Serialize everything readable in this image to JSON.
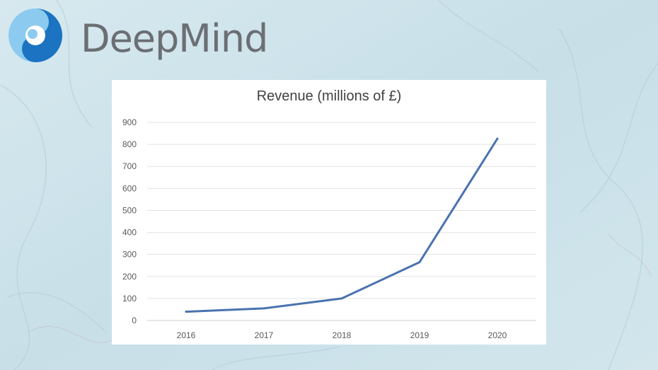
{
  "brand": {
    "name": "DeepMind",
    "colors": {
      "text": "#6b6f73",
      "logo_light": "#7cc6ee",
      "logo_dark": "#1a6fbf"
    }
  },
  "chart_data": {
    "type": "line",
    "title": "Revenue (millions of £)",
    "xlabel": "",
    "ylabel": "",
    "categories": [
      "2016",
      "2017",
      "2018",
      "2019",
      "2020"
    ],
    "series": [
      {
        "values": [
          40,
          55,
          100,
          265,
          826
        ],
        "color": "#4a72b0"
      }
    ],
    "ylim": [
      0,
      900
    ],
    "yticks": [
      "0",
      "100",
      "200",
      "300",
      "400",
      "500",
      "600",
      "700",
      "800",
      "900"
    ],
    "grid": true,
    "legend": "none"
  }
}
